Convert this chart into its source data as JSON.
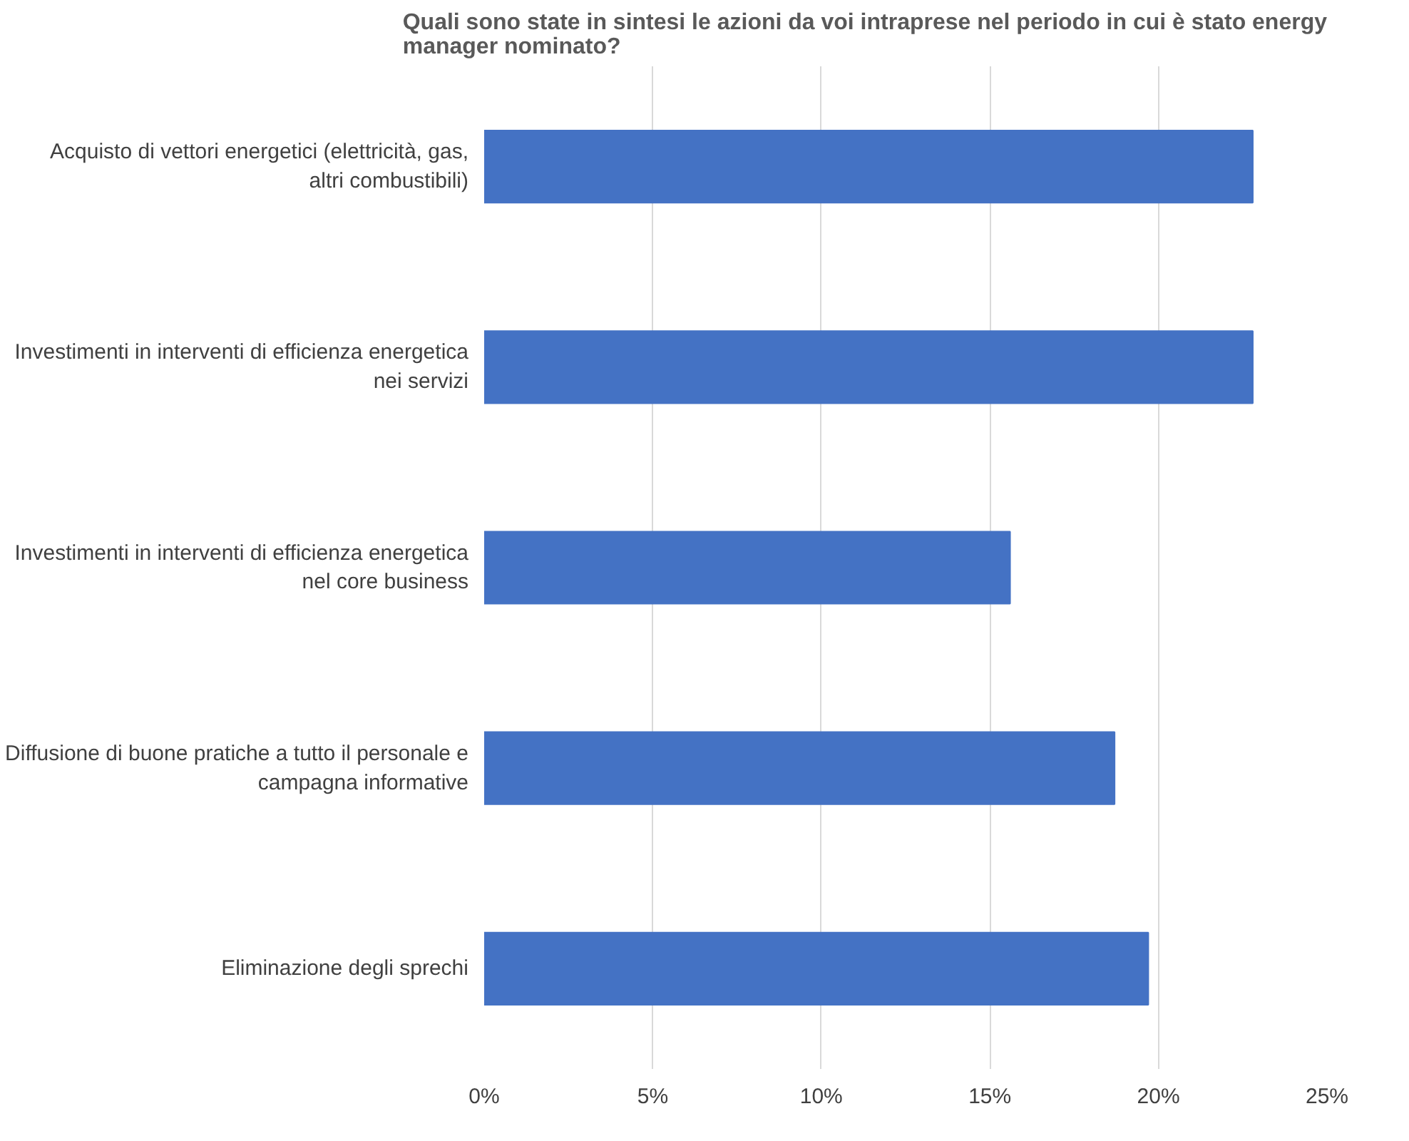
{
  "chart_data": {
    "type": "bar",
    "orientation": "horizontal",
    "title": "Quali sono state in sintesi le azioni da voi intraprese nel periodo in cui è stato energy manager nominato?",
    "categories": [
      "Acquisto di vettori energetici (elettricità, gas, altri combustibili)",
      "Investimenti in interventi di efficienza energetica nei servizi",
      "Investimenti in interventi di efficienza energetica nel core business",
      "Diffusione di buone pratiche a tutto il personale e campagna informative",
      "Eliminazione degli sprechi"
    ],
    "values": [
      22.8,
      22.8,
      15.6,
      18.7,
      19.7
    ],
    "color": "#4472c4",
    "xlim": [
      0,
      25
    ],
    "xticks": [
      {
        "value": 0,
        "label": "0%"
      },
      {
        "value": 5,
        "label": "5%"
      },
      {
        "value": 10,
        "label": "10%"
      },
      {
        "value": 15,
        "label": "15%"
      },
      {
        "value": 20,
        "label": "20%"
      },
      {
        "value": 25,
        "label": "25%"
      }
    ],
    "grid": "x"
  }
}
